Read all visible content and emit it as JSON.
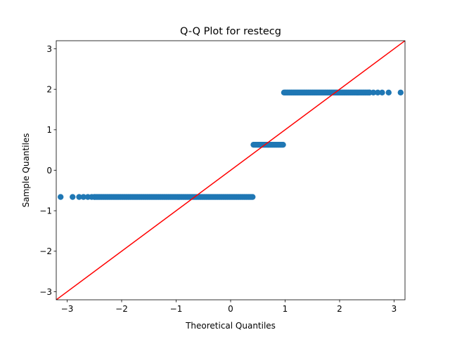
{
  "chart_data": {
    "type": "scatter",
    "title": "Q-Q Plot for restecg",
    "xlabel": "Theoretical Quantiles",
    "ylabel": "Sample Quantiles",
    "xlim": [
      -3.2,
      3.2
    ],
    "ylim": [
      -3.2,
      3.2
    ],
    "x_ticks": [
      -3,
      -2,
      -1,
      0,
      1,
      2,
      3
    ],
    "y_ticks": [
      -3,
      -2,
      -1,
      0,
      1,
      2,
      3
    ],
    "x_tick_labels": [
      "−3",
      "−2",
      "−1",
      "0",
      "1",
      "2",
      "3"
    ],
    "y_tick_labels": [
      "−3",
      "−2",
      "−1",
      "0",
      "1",
      "2",
      "3"
    ],
    "grid": false,
    "point_color": "#1f77b4",
    "line_color": "#ff0000",
    "reference_line": {
      "slope": 1,
      "intercept": 0
    },
    "groups": [
      {
        "y": -0.66,
        "x_extremes": [
          -3.12,
          -2.9,
          -2.78,
          -2.7,
          -2.62,
          -2.55,
          -2.5
        ],
        "x_fill": [
          -2.5,
          0.42
        ]
      },
      {
        "y": 0.63,
        "x_extremes": [],
        "x_fill": [
          0.42,
          0.98
        ]
      },
      {
        "y": 1.92,
        "x_extremes": [
          2.55,
          2.62,
          2.7,
          2.78,
          2.9,
          3.12
        ],
        "x_fill": [
          0.98,
          2.55
        ]
      }
    ]
  }
}
